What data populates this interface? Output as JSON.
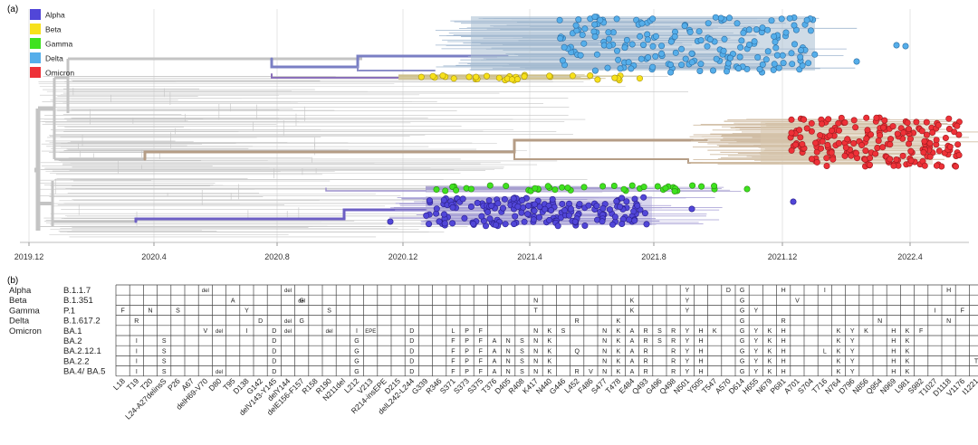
{
  "panel_a": {
    "label": "(a)",
    "legend": [
      {
        "name": "Alpha",
        "color": "#5146d8"
      },
      {
        "name": "Beta",
        "color": "#f7e11b"
      },
      {
        "name": "Gamma",
        "color": "#3fe21f"
      },
      {
        "name": "Delta",
        "color": "#55aeea"
      },
      {
        "name": "Omicron",
        "color": "#ee3138"
      }
    ],
    "axis_ticks": [
      "2019.12",
      "2020.4",
      "2020.8",
      "2020.12",
      "2021.4",
      "2021.8",
      "2021.12",
      "2022.4"
    ]
  },
  "panel_b": {
    "label": "(b)",
    "variants": [
      "Alpha",
      "Beta",
      "Gamma",
      "Delta",
      "Omicron",
      "",
      "",
      "",
      ""
    ],
    "lineages": [
      "B.1.1.7",
      "B.1.351",
      "P.1",
      "B.1.617.2",
      "BA.1",
      "BA.2",
      "BA.2.12.1",
      "BA.2.2",
      "BA.4/ BA.5"
    ],
    "mutations": [
      "L18",
      "T19",
      "T20",
      "L24-A27delinsS",
      "P26",
      "A67",
      "delH69-V70",
      "D80",
      "T95",
      "D138",
      "G142",
      "delV143-Y145",
      "delY144",
      "delE156-F157",
      "R158",
      "R190",
      "N211del",
      "L212",
      "V213",
      "R214-insEPE",
      "D215",
      "delL242-L244",
      "G339",
      "R346",
      "S371",
      "S373",
      "S375",
      "T376",
      "D405",
      "R408",
      "K417",
      "N440",
      "G446",
      "L452",
      "F486",
      "S477",
      "T478",
      "E484",
      "Q493",
      "G496",
      "Q498",
      "N501",
      "Y505",
      "T547",
      "A570",
      "D614",
      "H655",
      "N679",
      "P681",
      "A701",
      "S704",
      "T716",
      "N764",
      "D796",
      "N856",
      "Q954",
      "N969",
      "L981",
      "S982",
      "T1027",
      "D1118",
      "V1176",
      "I1221"
    ],
    "cells": [
      [
        [
          6,
          "del"
        ],
        [
          12,
          "del"
        ],
        [
          41,
          "Y"
        ],
        [
          44,
          "D"
        ],
        [
          45,
          "G"
        ],
        [
          48,
          "H"
        ],
        [
          51,
          "I"
        ],
        [
          60,
          "H"
        ]
      ],
      [
        [
          8,
          "A"
        ],
        [
          13,
          "G"
        ],
        [
          13,
          "del"
        ],
        [
          30,
          "N"
        ],
        [
          37,
          "K"
        ],
        [
          41,
          "Y"
        ],
        [
          45,
          "G"
        ],
        [
          49,
          "V"
        ]
      ],
      [
        [
          0,
          "F"
        ],
        [
          2,
          "N"
        ],
        [
          4,
          "S"
        ],
        [
          9,
          "Y"
        ],
        [
          15,
          "S"
        ],
        [
          30,
          "T"
        ],
        [
          37,
          "K"
        ],
        [
          41,
          "Y"
        ],
        [
          45,
          "G"
        ],
        [
          46,
          "Y"
        ],
        [
          59,
          "I"
        ],
        [
          61,
          "F"
        ]
      ],
      [
        [
          1,
          "R"
        ],
        [
          10,
          "D"
        ],
        [
          12,
          "del"
        ],
        [
          13,
          "G"
        ],
        [
          33,
          "R"
        ],
        [
          36,
          "K"
        ],
        [
          45,
          "G"
        ],
        [
          48,
          "R"
        ],
        [
          55,
          "N"
        ],
        [
          60,
          "N"
        ]
      ],
      [
        [
          6,
          "V"
        ],
        [
          7,
          "del"
        ],
        [
          9,
          "I"
        ],
        [
          11,
          "D"
        ],
        [
          12,
          "del"
        ],
        [
          15,
          "del"
        ],
        [
          17,
          "I"
        ],
        [
          18,
          "EPE"
        ],
        [
          21,
          "D"
        ],
        [
          24,
          "L"
        ],
        [
          25,
          "P"
        ],
        [
          26,
          "F"
        ],
        [
          30,
          "N"
        ],
        [
          31,
          "K"
        ],
        [
          32,
          "S"
        ],
        [
          35,
          "N"
        ],
        [
          36,
          "K"
        ],
        [
          37,
          "A"
        ],
        [
          38,
          "R"
        ],
        [
          39,
          "S"
        ],
        [
          40,
          "R"
        ],
        [
          41,
          "Y"
        ],
        [
          42,
          "H"
        ],
        [
          43,
          "K"
        ],
        [
          45,
          "G"
        ],
        [
          46,
          "Y"
        ],
        [
          47,
          "K"
        ],
        [
          48,
          "H"
        ],
        [
          52,
          "K"
        ],
        [
          53,
          "Y"
        ],
        [
          54,
          "K"
        ],
        [
          56,
          "H"
        ],
        [
          57,
          "K"
        ],
        [
          58,
          "F"
        ]
      ],
      [
        [
          1,
          "I"
        ],
        [
          3,
          "S"
        ],
        [
          11,
          "D"
        ],
        [
          17,
          "G"
        ],
        [
          21,
          "D"
        ],
        [
          24,
          "F"
        ],
        [
          25,
          "P"
        ],
        [
          26,
          "F"
        ],
        [
          27,
          "A"
        ],
        [
          28,
          "N"
        ],
        [
          29,
          "S"
        ],
        [
          30,
          "N"
        ],
        [
          31,
          "K"
        ],
        [
          35,
          "N"
        ],
        [
          36,
          "K"
        ],
        [
          37,
          "A"
        ],
        [
          38,
          "R"
        ],
        [
          39,
          "S"
        ],
        [
          40,
          "R"
        ],
        [
          41,
          "Y"
        ],
        [
          42,
          "H"
        ],
        [
          45,
          "G"
        ],
        [
          46,
          "Y"
        ],
        [
          47,
          "K"
        ],
        [
          48,
          "H"
        ],
        [
          52,
          "K"
        ],
        [
          53,
          "Y"
        ],
        [
          56,
          "H"
        ],
        [
          57,
          "K"
        ]
      ],
      [
        [
          1,
          "I"
        ],
        [
          3,
          "S"
        ],
        [
          11,
          "D"
        ],
        [
          17,
          "G"
        ],
        [
          21,
          "D"
        ],
        [
          24,
          "F"
        ],
        [
          25,
          "P"
        ],
        [
          26,
          "F"
        ],
        [
          27,
          "A"
        ],
        [
          28,
          "N"
        ],
        [
          29,
          "S"
        ],
        [
          30,
          "N"
        ],
        [
          31,
          "K"
        ],
        [
          33,
          "Q"
        ],
        [
          35,
          "N"
        ],
        [
          36,
          "K"
        ],
        [
          37,
          "A"
        ],
        [
          38,
          "R"
        ],
        [
          40,
          "R"
        ],
        [
          41,
          "Y"
        ],
        [
          42,
          "H"
        ],
        [
          45,
          "G"
        ],
        [
          46,
          "Y"
        ],
        [
          47,
          "K"
        ],
        [
          48,
          "H"
        ],
        [
          51,
          "L"
        ],
        [
          52,
          "K"
        ],
        [
          53,
          "Y"
        ],
        [
          56,
          "H"
        ],
        [
          57,
          "K"
        ]
      ],
      [
        [
          1,
          "I"
        ],
        [
          3,
          "S"
        ],
        [
          11,
          "D"
        ],
        [
          17,
          "G"
        ],
        [
          21,
          "D"
        ],
        [
          24,
          "F"
        ],
        [
          25,
          "P"
        ],
        [
          26,
          "F"
        ],
        [
          27,
          "A"
        ],
        [
          28,
          "N"
        ],
        [
          29,
          "S"
        ],
        [
          30,
          "N"
        ],
        [
          31,
          "K"
        ],
        [
          35,
          "N"
        ],
        [
          36,
          "K"
        ],
        [
          37,
          "A"
        ],
        [
          38,
          "R"
        ],
        [
          40,
          "R"
        ],
        [
          41,
          "Y"
        ],
        [
          42,
          "H"
        ],
        [
          45,
          "G"
        ],
        [
          46,
          "Y"
        ],
        [
          47,
          "K"
        ],
        [
          48,
          "H"
        ],
        [
          52,
          "K"
        ],
        [
          53,
          "Y"
        ],
        [
          56,
          "H"
        ],
        [
          57,
          "K"
        ],
        [
          62,
          "T"
        ]
      ],
      [
        [
          1,
          "I"
        ],
        [
          3,
          "S"
        ],
        [
          7,
          "del"
        ],
        [
          11,
          "D"
        ],
        [
          17,
          "G"
        ],
        [
          21,
          "D"
        ],
        [
          24,
          "F"
        ],
        [
          25,
          "P"
        ],
        [
          26,
          "F"
        ],
        [
          27,
          "A"
        ],
        [
          28,
          "N"
        ],
        [
          29,
          "S"
        ],
        [
          30,
          "N"
        ],
        [
          31,
          "K"
        ],
        [
          33,
          "R"
        ],
        [
          34,
          "V"
        ],
        [
          35,
          "N"
        ],
        [
          36,
          "K"
        ],
        [
          37,
          "A"
        ],
        [
          38,
          "R"
        ],
        [
          40,
          "R"
        ],
        [
          41,
          "Y"
        ],
        [
          42,
          "H"
        ],
        [
          45,
          "G"
        ],
        [
          46,
          "Y"
        ],
        [
          47,
          "K"
        ],
        [
          48,
          "H"
        ],
        [
          52,
          "K"
        ],
        [
          53,
          "Y"
        ],
        [
          56,
          "H"
        ],
        [
          57,
          "K"
        ]
      ]
    ]
  }
}
